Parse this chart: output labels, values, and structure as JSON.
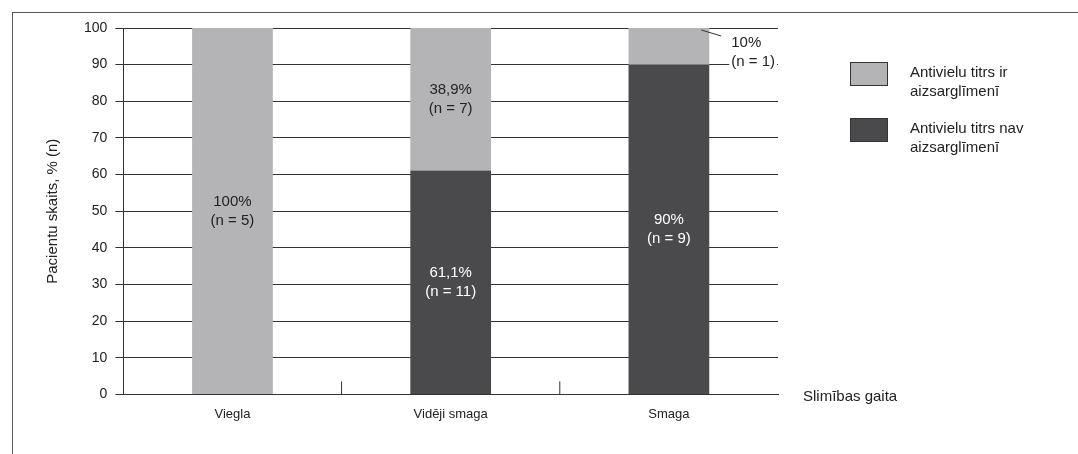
{
  "chart_data": {
    "type": "bar",
    "stacked": true,
    "ylabel": "Pacientu skaits, % (n)",
    "xlabel": "Slimības gaita",
    "categories": [
      "Viegla",
      "Vidēji smaga",
      "Smaga"
    ],
    "series": [
      {
        "name": "Antivielu titrs nav aizsarglīmenī",
        "color": "#4a4a4c",
        "values": [
          0,
          61.1,
          90
        ],
        "value_labels": [
          null,
          "61,1%\n(n = 11)",
          "90%\n(n = 9)"
        ]
      },
      {
        "name": "Antivielu titrs ir aizsarglīmenī",
        "color": "#b4b4b6",
        "values": [
          100,
          38.9,
          10
        ],
        "value_labels": [
          "100%\n(n = 5)",
          "38,9%\n(n = 7)",
          "10%\n(n = 1)"
        ]
      }
    ],
    "ylim": [
      0,
      100
    ],
    "yticks": [
      0,
      10,
      20,
      30,
      40,
      50,
      60,
      70,
      80,
      90,
      100
    ],
    "grid": "y",
    "legend": "right"
  }
}
